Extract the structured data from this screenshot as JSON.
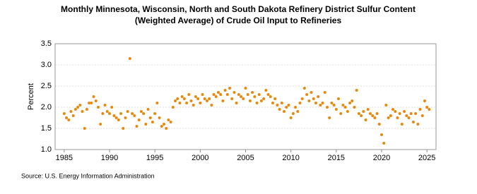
{
  "chart_data": {
    "type": "scatter",
    "title": [
      "Monthly Minnesota, Wisconsin, North and South Dakota Refinery District Sulfur Content",
      "(Weighted Average) of Crude Oil Input to Refineries"
    ],
    "y_label": "Percent",
    "source": "Source: U.S. Energy Information Administration",
    "color": "#e8890c",
    "grid": true,
    "xlim": [
      1984,
      2026
    ],
    "xticks": [
      1985,
      1990,
      1995,
      2000,
      2005,
      2010,
      2015,
      2020,
      2025
    ],
    "ylim": [
      1,
      3.5
    ],
    "yticks": [
      {
        "value": 1,
        "label": "1.0"
      },
      {
        "value": 1.5,
        "label": "1.5"
      },
      {
        "value": 2,
        "label": "2.0"
      },
      {
        "value": 2.5,
        "label": "2.5"
      },
      {
        "value": 3,
        "label": "3.0"
      },
      {
        "value": 3.5,
        "label": "3.5"
      }
    ],
    "x": [
      1985,
      1985.25,
      1985.5,
      1985.75,
      1986,
      1986.25,
      1986.5,
      1986.75,
      1987,
      1987.25,
      1987.5,
      1987.75,
      1988,
      1988.25,
      1988.5,
      1988.75,
      1989,
      1989.25,
      1989.5,
      1989.75,
      1990,
      1990.25,
      1990.5,
      1990.75,
      1991,
      1991.25,
      1991.5,
      1991.75,
      1992,
      1992.25,
      1992.5,
      1992.75,
      1993,
      1993.25,
      1993.5,
      1993.75,
      1994,
      1994.25,
      1994.5,
      1994.75,
      1995,
      1995.25,
      1995.5,
      1995.75,
      1996,
      1996.25,
      1996.5,
      1996.75,
      1997,
      1997.25,
      1997.5,
      1997.75,
      1998,
      1998.25,
      1998.5,
      1998.75,
      1999,
      1999.25,
      1999.5,
      1999.75,
      2000,
      2000.25,
      2000.5,
      2000.75,
      2001,
      2001.25,
      2001.5,
      2001.75,
      2002,
      2002.25,
      2002.5,
      2002.75,
      2003,
      2003.25,
      2003.5,
      2003.75,
      2004,
      2004.25,
      2004.5,
      2004.75,
      2005,
      2005.25,
      2005.5,
      2005.75,
      2006,
      2006.25,
      2006.5,
      2006.75,
      2007,
      2007.25,
      2007.5,
      2007.75,
      2008,
      2008.25,
      2008.5,
      2008.75,
      2009,
      2009.25,
      2009.5,
      2009.75,
      2010,
      2010.25,
      2010.5,
      2010.75,
      2011,
      2011.25,
      2011.5,
      2011.75,
      2012,
      2012.25,
      2012.5,
      2012.75,
      2013,
      2013.25,
      2013.5,
      2013.75,
      2014,
      2014.25,
      2014.5,
      2014.75,
      2015,
      2015.25,
      2015.5,
      2015.75,
      2016,
      2016.25,
      2016.5,
      2016.75,
      2017,
      2017.25,
      2017.5,
      2017.75,
      2018,
      2018.25,
      2018.5,
      2018.75,
      2019,
      2019.25,
      2019.5,
      2019.75,
      2020,
      2020.25,
      2020.5,
      2020.75,
      2021,
      2021.25,
      2021.5,
      2021.75,
      2022,
      2022.25,
      2022.5,
      2022.75,
      2023,
      2023.25,
      2023.5,
      2023.75,
      2024,
      2024.25,
      2024.5,
      2024.75,
      2025,
      2025.25
    ],
    "values": [
      1.85,
      1.75,
      1.7,
      1.9,
      1.8,
      1.95,
      2.0,
      2.05,
      1.9,
      1.5,
      1.95,
      2.1,
      2.1,
      2.25,
      2.15,
      2.0,
      1.6,
      1.85,
      2.05,
      1.9,
      1.85,
      2.0,
      1.8,
      1.75,
      1.7,
      1.85,
      1.5,
      1.75,
      1.9,
      3.15,
      1.85,
      1.8,
      1.55,
      1.7,
      1.9,
      1.85,
      1.6,
      1.95,
      1.75,
      1.65,
      1.85,
      2.1,
      1.75,
      1.55,
      1.6,
      1.5,
      1.7,
      1.65,
      2.0,
      2.15,
      2.2,
      2.1,
      2.25,
      2.2,
      2.1,
      2.3,
      2.15,
      2.05,
      2.25,
      2.2,
      2.1,
      2.3,
      2.2,
      2.15,
      2.2,
      2.05,
      2.3,
      2.25,
      2.35,
      2.3,
      2.15,
      2.4,
      2.3,
      2.45,
      2.2,
      2.35,
      2.1,
      2.3,
      2.25,
      2.2,
      2.45,
      2.3,
      2.15,
      2.35,
      2.25,
      2.1,
      2.3,
      2.15,
      2.2,
      2.4,
      2.3,
      2.25,
      2.1,
      2.2,
      2.05,
      1.95,
      2.1,
      1.9,
      2.0,
      2.05,
      1.75,
      1.85,
      2.0,
      1.9,
      2.1,
      2.2,
      2.45,
      2.3,
      2.15,
      2.35,
      2.2,
      2.1,
      2.25,
      2.05,
      2.1,
      2.35,
      2.0,
      1.75,
      2.1,
      2.05,
      1.95,
      2.2,
      1.85,
      2.05,
      2.0,
      1.9,
      2.1,
      2.15,
      2.0,
      2.4,
      1.85,
      1.8,
      1.9,
      1.7,
      1.95,
      1.85,
      1.8,
      1.75,
      1.85,
      1.6,
      1.35,
      1.15,
      2.05,
      1.75,
      1.8,
      1.95,
      1.9,
      1.75,
      1.85,
      1.6,
      1.9,
      1.8,
      1.75,
      1.85,
      1.65,
      1.85,
      1.6,
      1.95,
      1.8,
      2.15,
      2.0,
      1.95
    ]
  }
}
